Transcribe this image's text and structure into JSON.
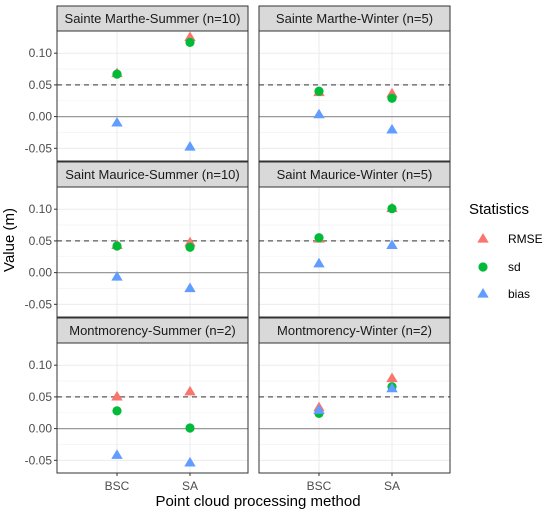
{
  "chart_data": {
    "type": "scatter",
    "xlabel": "Point cloud processing method",
    "ylabel": "Value (m)",
    "categories": [
      "BSC",
      "SA"
    ],
    "ylim": [
      -0.07,
      0.135
    ],
    "yticks": [
      -0.05,
      0.0,
      0.05,
      0.1
    ],
    "ytick_labels": [
      "-0.05",
      "0.00",
      "0.05",
      "0.10"
    ],
    "reference_lines": {
      "solid": 0.0,
      "dashed": 0.05
    },
    "grid": true,
    "legend": {
      "title": "Statistics",
      "position": "right",
      "entries": [
        {
          "name": "RMSE",
          "shape": "triangle",
          "color": "#F8766D"
        },
        {
          "name": "sd",
          "shape": "circle",
          "color": "#00BA38"
        },
        {
          "name": "bias",
          "shape": "triangle",
          "color": "#619CFF"
        }
      ]
    },
    "panels": [
      {
        "title": "Sainte Marthe-Summer (n=10)",
        "RMSE": [
          0.068,
          0.125
        ],
        "sd": [
          0.067,
          0.117
        ],
        "bias": [
          -0.01,
          -0.048
        ]
      },
      {
        "title": "Sainte Marthe-Winter (n=5)",
        "RMSE": [
          0.038,
          0.036
        ],
        "sd": [
          0.04,
          0.029
        ],
        "bias": [
          0.003,
          -0.021
        ]
      },
      {
        "title": "Saint Maurice-Summer (n=10)",
        "RMSE": [
          0.043,
          0.047
        ],
        "sd": [
          0.042,
          0.04
        ],
        "bias": [
          -0.007,
          -0.025
        ]
      },
      {
        "title": "Saint Maurice-Winter (n=5)",
        "RMSE": [
          0.053,
          0.101
        ],
        "sd": [
          0.055,
          0.101
        ],
        "bias": [
          0.014,
          0.043
        ]
      },
      {
        "title": "Montmorency-Summer (n=2)",
        "RMSE": [
          0.05,
          0.058
        ],
        "sd": [
          0.028,
          0.001
        ],
        "bias": [
          -0.042,
          -0.054
        ]
      },
      {
        "title": "Montmorency-Winter (n=2)",
        "RMSE": [
          0.033,
          0.079
        ],
        "sd": [
          0.024,
          0.066
        ],
        "bias": [
          0.029,
          0.063
        ]
      }
    ]
  }
}
